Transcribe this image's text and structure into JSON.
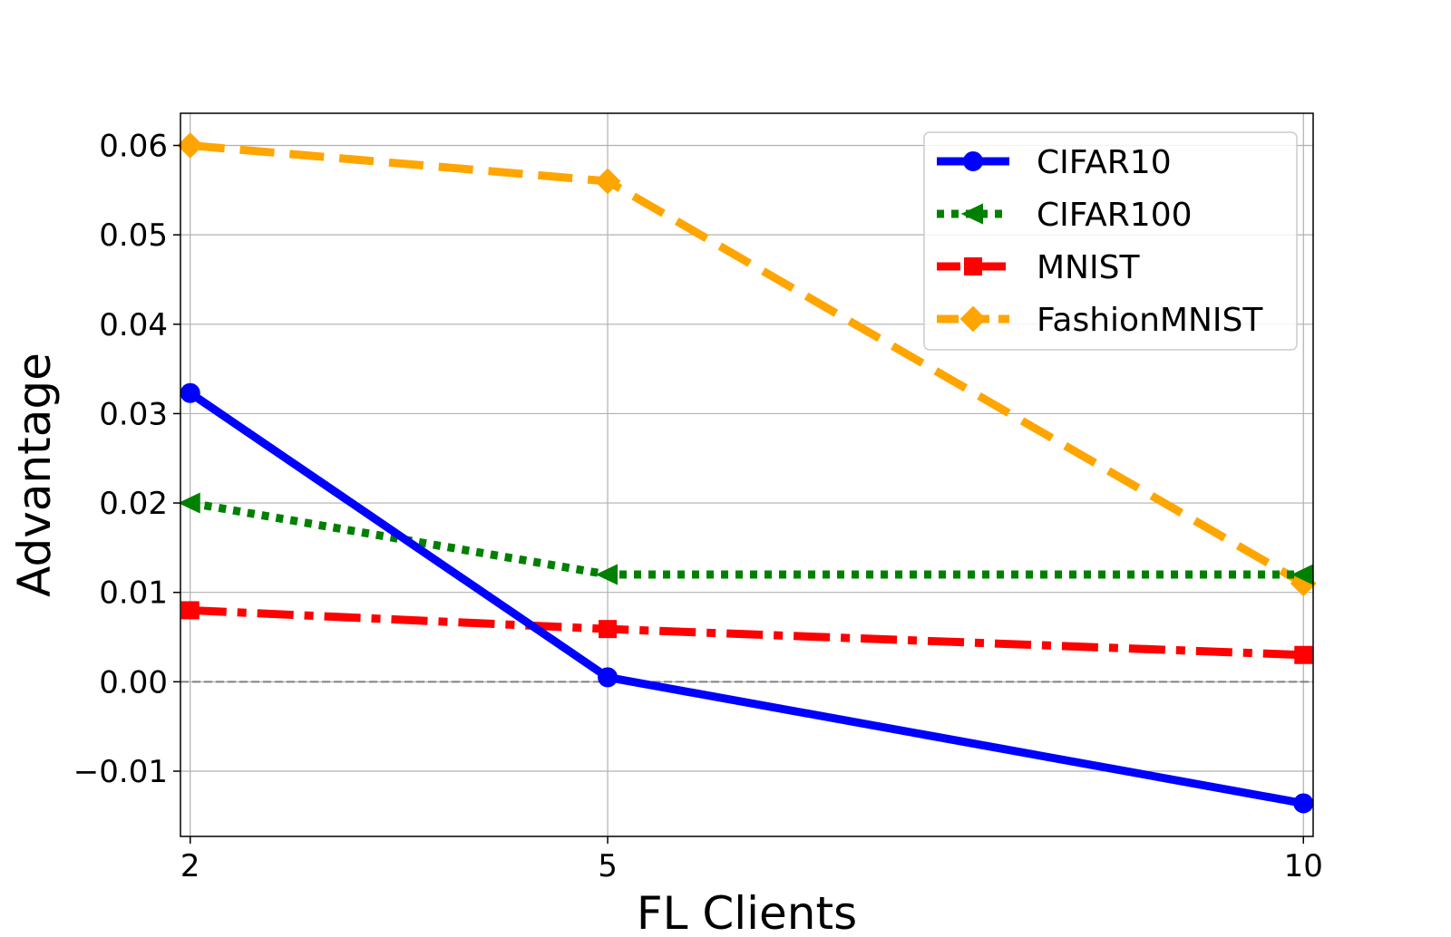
{
  "chart_data": {
    "type": "line",
    "xlabel": "FL Clients",
    "ylabel": "Advantage",
    "x": [
      2,
      5,
      10
    ],
    "x_ticks": [
      2,
      5,
      10
    ],
    "x_tick_labels": [
      "2",
      "5",
      "10"
    ],
    "xlim": [
      1.93,
      10.07
    ],
    "y_ticks": [
      -0.01,
      0.0,
      0.01,
      0.02,
      0.03,
      0.04,
      0.05,
      0.06
    ],
    "y_tick_labels": [
      "−0.01",
      "0.00",
      "0.01",
      "0.02",
      "0.03",
      "0.04",
      "0.05",
      "0.06"
    ],
    "ylim": [
      -0.0173,
      0.0636
    ],
    "grid": true,
    "reference_line": {
      "y": 0,
      "style": "dashed",
      "color": "#808080"
    },
    "legend_position": "top-right",
    "series": [
      {
        "name": "CIFAR10",
        "values": [
          0.0323,
          0.0005,
          -0.0136
        ],
        "color": "#0000ff",
        "line_style": "solid",
        "marker": "circle"
      },
      {
        "name": "CIFAR100",
        "values": [
          0.02,
          0.012,
          0.012
        ],
        "color": "#008000",
        "line_style": "dotted",
        "marker": "triangle-left"
      },
      {
        "name": "MNIST",
        "values": [
          0.008,
          0.0059,
          0.003
        ],
        "color": "#ff0000",
        "line_style": "dashdot",
        "marker": "square"
      },
      {
        "name": "FashionMNIST",
        "values": [
          0.06,
          0.056,
          0.011
        ],
        "color": "#ffa500",
        "line_style": "dashed",
        "marker": "diamond"
      }
    ]
  }
}
